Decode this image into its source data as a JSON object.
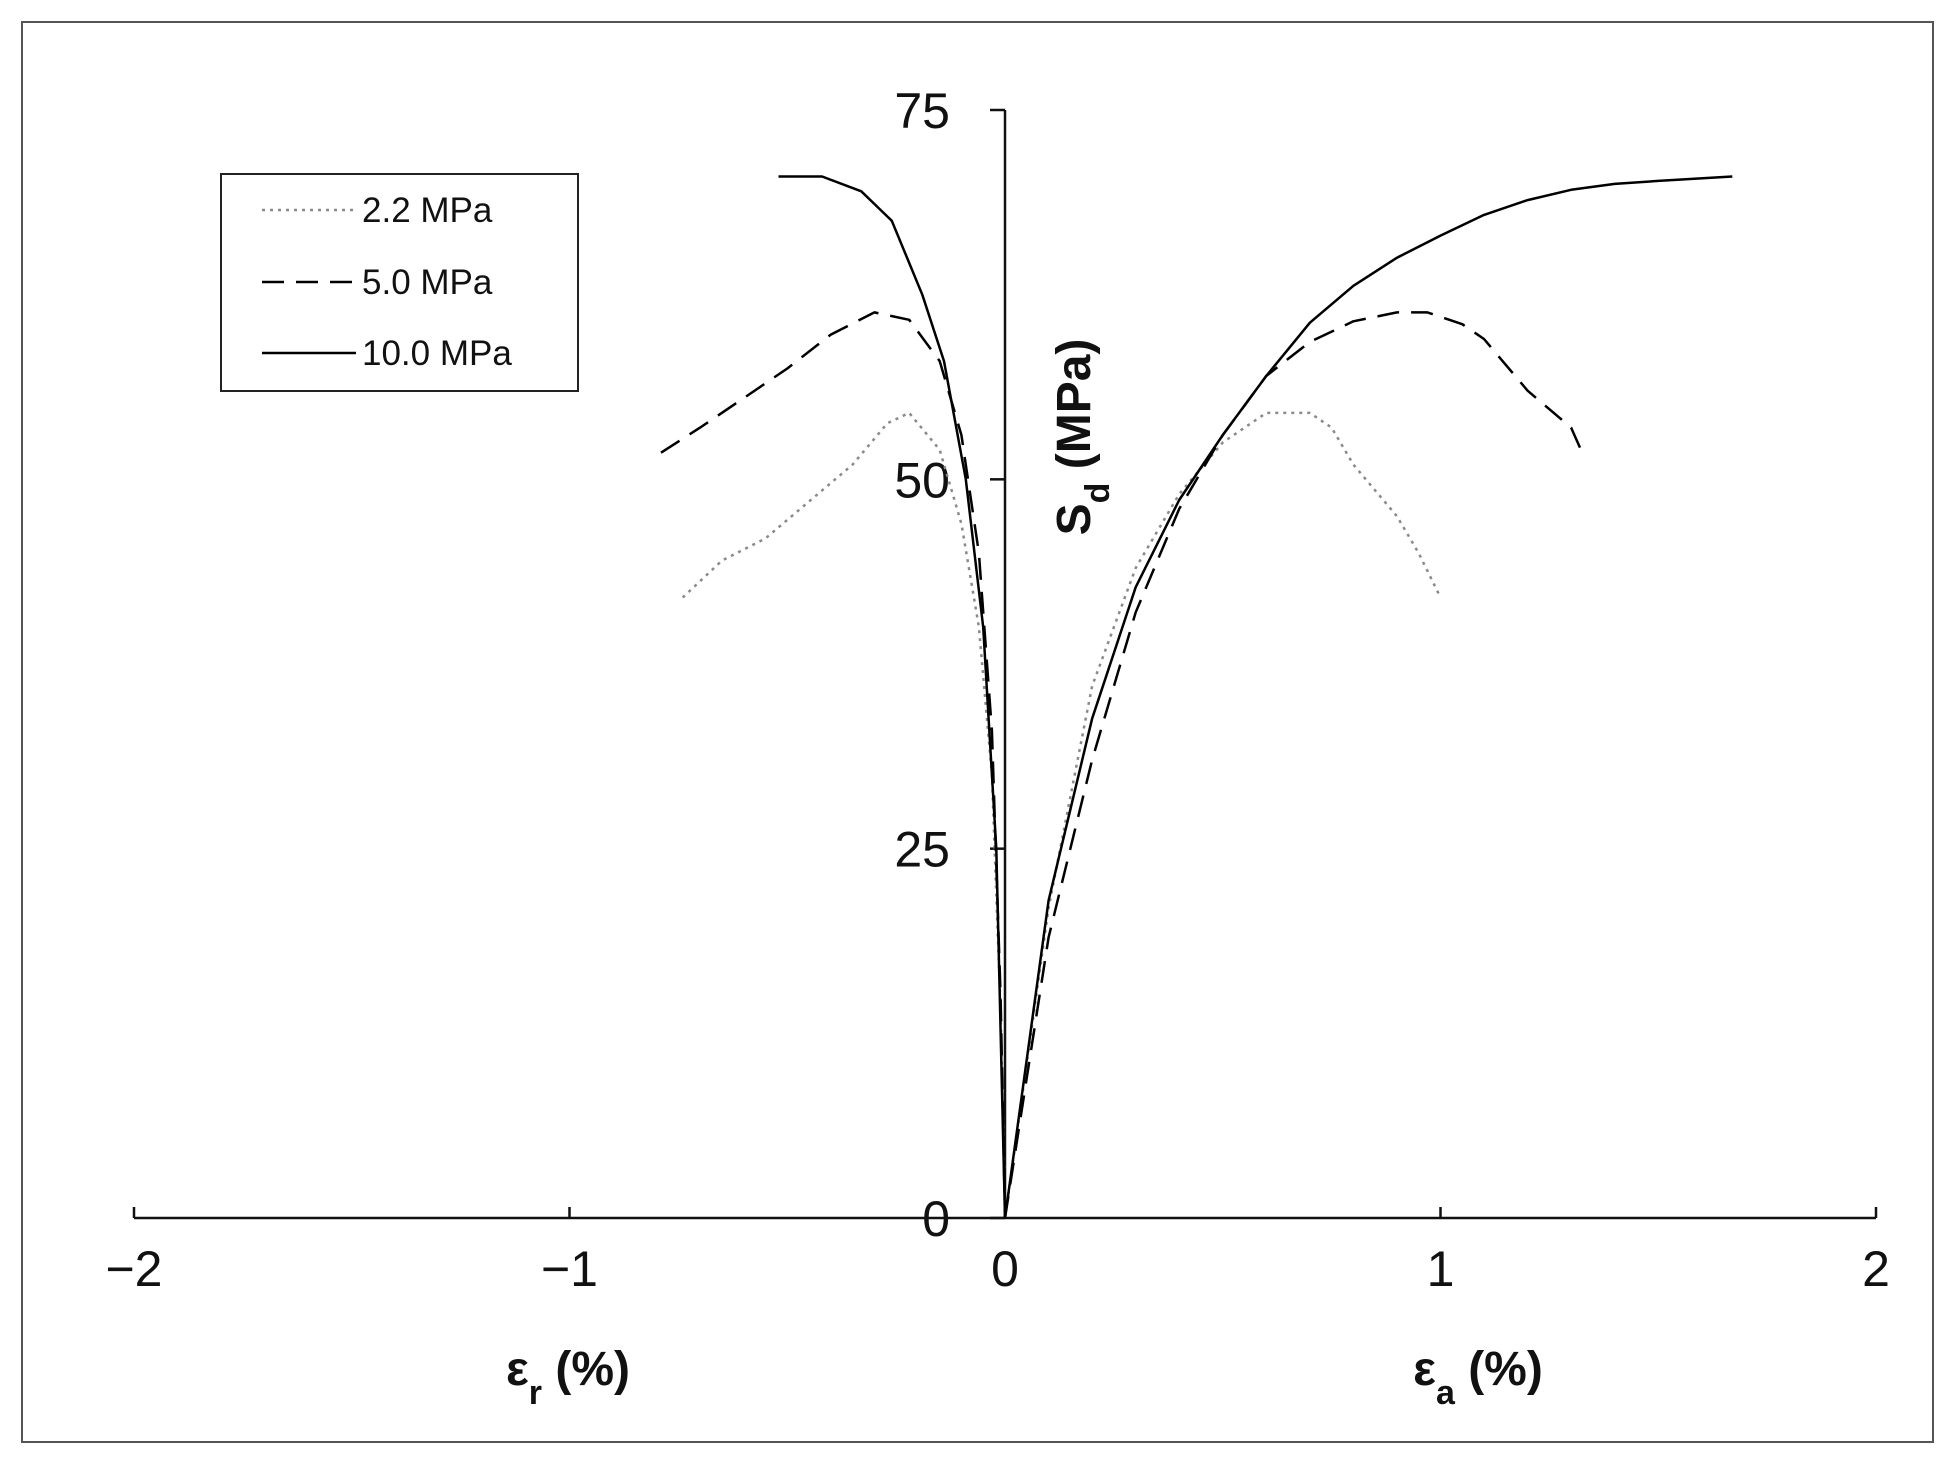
{
  "chart_data": {
    "type": "line",
    "x_label_left": {
      "main": "ε",
      "sub": "r",
      "rest": " (%)"
    },
    "x_label_right": {
      "main": "ε",
      "sub": "a",
      "rest": " (%)"
    },
    "y_label": {
      "main": "S",
      "sub": "d",
      "rest": " (MPa)"
    },
    "xlim": [
      -2,
      2
    ],
    "xticks": [
      {
        "value": -2,
        "label": "−2"
      },
      {
        "value": -1,
        "label": "−1"
      },
      0,
      1,
      2
    ],
    "ylim": [
      0,
      75
    ],
    "yticks": [
      0,
      25,
      50,
      75
    ],
    "grid": false,
    "legend": "upper-left",
    "series": [
      {
        "name": "2.2 MPa",
        "color": "#8a8a8a",
        "dash": "dotted",
        "x": [
          -0.74,
          -0.65,
          -0.55,
          -0.45,
          -0.35,
          -0.27,
          -0.22,
          -0.15,
          -0.1,
          -0.06,
          -0.03,
          -0.01,
          0,
          null,
          0,
          0.1,
          0.2,
          0.3,
          0.4,
          0.5,
          0.6,
          0.7,
          0.75,
          0.8,
          0.9,
          0.95,
          1.0
        ],
        "values": [
          42,
          44.5,
          46,
          48.5,
          51,
          53.8,
          54.5,
          52,
          47,
          40,
          30,
          14,
          0,
          null,
          0,
          21,
          36,
          44,
          49,
          52.5,
          54.5,
          54.5,
          53.5,
          51,
          47.5,
          45,
          42
        ]
      },
      {
        "name": "5.0 MPa",
        "color": "#000000",
        "dash": "dashed",
        "x": [
          -0.79,
          -0.7,
          -0.6,
          -0.5,
          -0.4,
          -0.3,
          -0.22,
          -0.15,
          -0.1,
          -0.06,
          -0.03,
          -0.01,
          0,
          null,
          0,
          0.1,
          0.2,
          0.3,
          0.4,
          0.5,
          0.6,
          0.7,
          0.8,
          0.9,
          0.97,
          1.05,
          1.1,
          1.2,
          1.3,
          1.33
        ],
        "values": [
          51.8,
          53.5,
          55.5,
          57.5,
          59.8,
          61.3,
          60.8,
          58,
          53,
          45,
          33,
          15,
          0,
          null,
          0,
          19,
          31,
          41,
          48,
          53,
          57,
          59.3,
          60.7,
          61.3,
          61.3,
          60.5,
          59.5,
          56,
          53.5,
          51.5
        ]
      },
      {
        "name": "10.0 MPa",
        "color": "#000000",
        "dash": "solid",
        "x": [
          -0.52,
          -0.42,
          -0.33,
          -0.26,
          -0.19,
          -0.14,
          -0.09,
          -0.05,
          -0.02,
          0,
          null,
          0,
          0.1,
          0.2,
          0.3,
          0.4,
          0.5,
          0.6,
          0.7,
          0.8,
          0.9,
          1.0,
          1.1,
          1.2,
          1.3,
          1.4,
          1.5,
          1.67
        ],
        "values": [
          70.5,
          70.5,
          69.5,
          67.5,
          62.5,
          58,
          50,
          40,
          25,
          0,
          null,
          0,
          21.5,
          33.8,
          42.7,
          48.6,
          53,
          57,
          60.6,
          63.1,
          65,
          66.5,
          67.9,
          68.9,
          69.6,
          70,
          70.2,
          70.5
        ]
      }
    ]
  }
}
